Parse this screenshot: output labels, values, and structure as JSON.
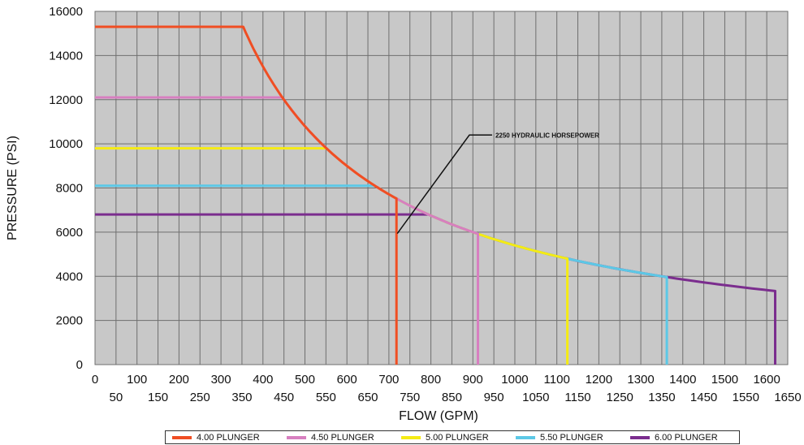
{
  "chart_data": {
    "type": "line",
    "title": "",
    "xlabel": "FLOW (GPM)",
    "ylabel": "PRESSURE (PSI)",
    "xlim": [
      0,
      1650
    ],
    "ylim": [
      0,
      16000
    ],
    "grid": true,
    "plot_background": "#c8c8c8",
    "x_ticks_upper": [
      "0",
      "100",
      "200",
      "300",
      "400",
      "500",
      "600",
      "700",
      "800",
      "900",
      "1000",
      "1100",
      "1200",
      "1300",
      "1400",
      "1500",
      "1600"
    ],
    "x_ticks_lower": [
      "50",
      "150",
      "250",
      "350",
      "450",
      "550",
      "650",
      "750",
      "850",
      "950",
      "1050",
      "1150",
      "1250",
      "1350",
      "1450",
      "1550",
      "1650"
    ],
    "y_ticks": [
      "0",
      "2000",
      "4000",
      "6000",
      "8000",
      "10000",
      "12000",
      "14000",
      "16000"
    ],
    "legend_placement": "bottom",
    "annotation": {
      "text": "2250 HYDRAULIC HORSEPOWER",
      "points_to": [
        720,
        5350
      ],
      "label_at": [
        940,
        10400
      ]
    },
    "series": [
      {
        "name": "4.00 PLUNGER",
        "color": "#f04e23",
        "max_pressure": 15300,
        "max_flow": 718
      },
      {
        "name": "4.50 PLUNGER",
        "color": "#d77fc0",
        "max_pressure": 12100,
        "max_flow": 912
      },
      {
        "name": "5.00 PLUNGER",
        "color": "#f5eb14",
        "max_pressure": 9800,
        "max_flow": 1125
      },
      {
        "name": "5.50 PLUNGER",
        "color": "#5cc8e6",
        "max_pressure": 8100,
        "max_flow": 1362
      },
      {
        "name": "6.00 PLUNGER",
        "color": "#7b2d8e",
        "max_pressure": 6800,
        "max_flow": 1620
      }
    ]
  }
}
